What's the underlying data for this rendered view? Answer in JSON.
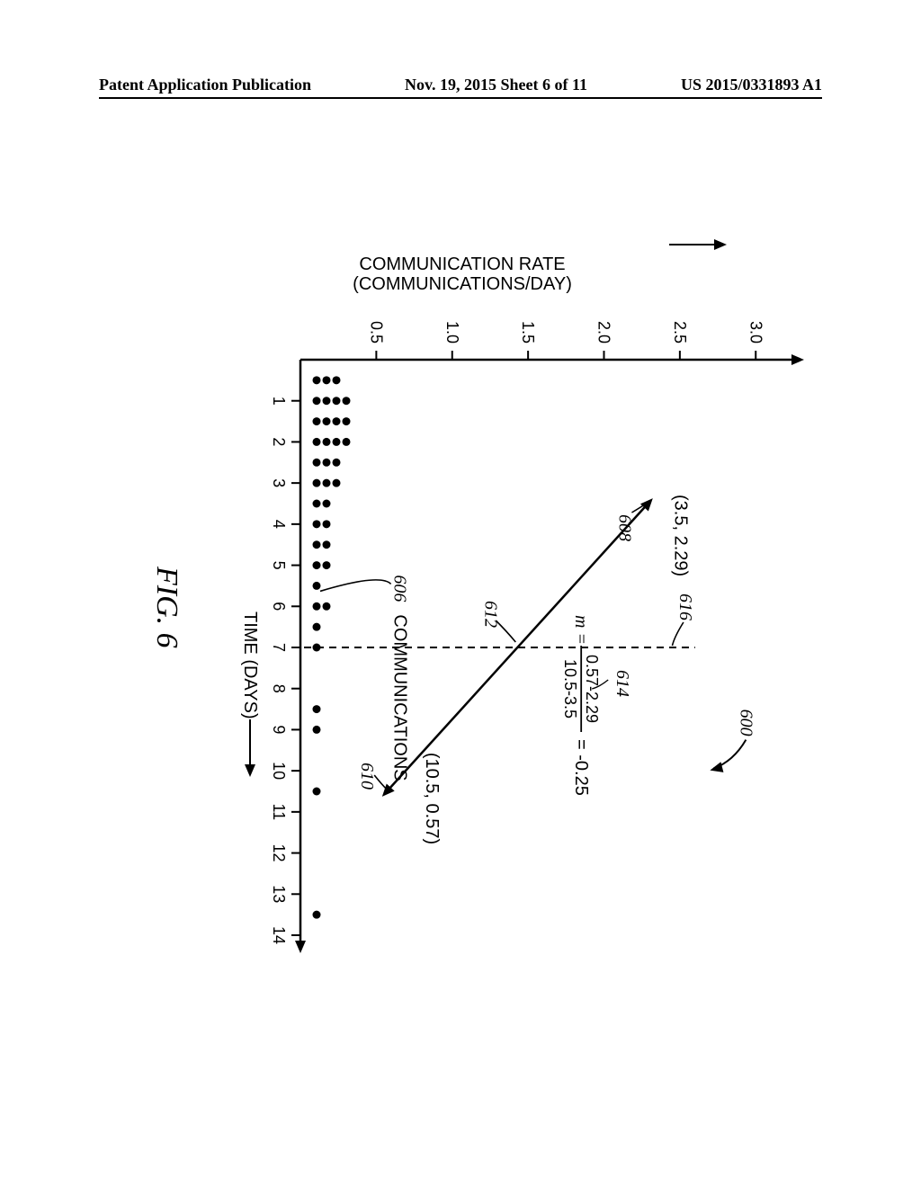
{
  "header": {
    "left": "Patent Application Publication",
    "center": "Nov. 19, 2015  Sheet 6 of 11",
    "right": "US 2015/0331893 A1"
  },
  "figure": {
    "label": "FIG. 6",
    "ref_number": "600",
    "x_axis": {
      "label": "TIME (DAYS)",
      "min": 0,
      "max": 14,
      "ticks": [
        1,
        2,
        3,
        4,
        5,
        6,
        7,
        8,
        9,
        10,
        11,
        12,
        13,
        14
      ]
    },
    "y_axis": {
      "label": "COMMUNICATION RATE",
      "sublabel": "(COMMUNICATIONS/DAY)",
      "min": 0,
      "max": 3.2,
      "ticks": [
        0.5,
        1.0,
        1.5,
        2.0,
        2.5,
        3.0
      ]
    },
    "dots_label": "COMMUNICATIONS",
    "dots_ref": "606",
    "comm_counts": {
      "0.5": 3,
      "1": 4,
      "1.5": 4,
      "2": 4,
      "2.5": 3,
      "3": 3,
      "3.5": 2,
      "4": 2,
      "4.5": 2,
      "5": 2,
      "5.5": 1,
      "6": 2,
      "6.5": 1,
      "7": 1,
      "8.5": 1,
      "9": 1,
      "10.5": 1,
      "13.5": 1
    },
    "line": {
      "p1": {
        "x": 3.5,
        "y": 2.29,
        "label": "(3.5, 2.29)",
        "ref": "608"
      },
      "p2": {
        "x": 10.5,
        "y": 0.57,
        "label": "(10.5, 0.57)",
        "ref": "610"
      },
      "ref": "612"
    },
    "slope": {
      "ref": "614",
      "text_prefix": "m =",
      "numerator": "0.57-2.29",
      "denominator": "10.5-3.5",
      "result": "= -0.25"
    },
    "divider": {
      "x": 7,
      "ref": "616"
    },
    "style": {
      "axis_color": "#000000",
      "dot_color": "#000000",
      "line_color": "#000000",
      "line_width": 2.5,
      "dot_radius": 4.5,
      "tick_font_size": 18,
      "label_font_size": 20,
      "annotation_font_size": 20,
      "ref_font_style": "italic"
    }
  }
}
